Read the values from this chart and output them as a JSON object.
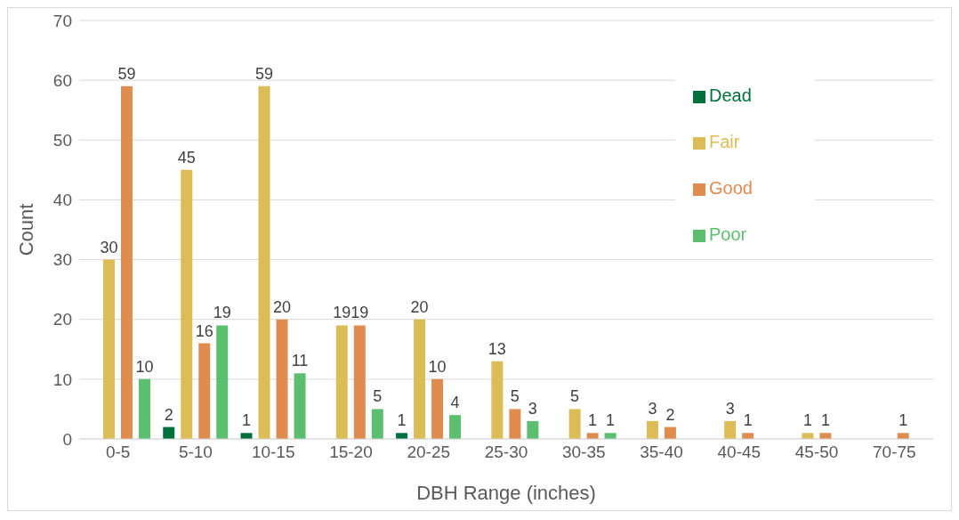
{
  "chart_data": {
    "type": "bar",
    "xlabel": "DBH Range (inches)",
    "ylabel": "Count",
    "categories": [
      "0-5",
      "5-10",
      "10-15",
      "15-20",
      "20-25",
      "25-30",
      "30-35",
      "35-40",
      "40-45",
      "45-50",
      "70-75"
    ],
    "series": [
      {
        "name": "Dead",
        "color": "#00703c",
        "values": [
          null,
          2,
          1,
          null,
          1,
          null,
          null,
          null,
          null,
          null,
          null
        ]
      },
      {
        "name": "Fair",
        "color": "#dcbc56",
        "values": [
          30,
          45,
          59,
          19,
          20,
          13,
          5,
          3,
          3,
          1,
          null
        ]
      },
      {
        "name": "Good",
        "color": "#e08c50",
        "values": [
          59,
          16,
          20,
          19,
          10,
          5,
          1,
          2,
          1,
          1,
          1
        ]
      },
      {
        "name": "Poor",
        "color": "#5cbf70",
        "values": [
          10,
          19,
          11,
          5,
          4,
          3,
          1,
          null,
          null,
          null,
          null
        ]
      }
    ],
    "ylim": [
      0,
      70
    ],
    "yticks": [
      0,
      10,
      20,
      30,
      40,
      50,
      60,
      70
    ],
    "grid": "y",
    "legend": "top right",
    "data_labels": true
  }
}
